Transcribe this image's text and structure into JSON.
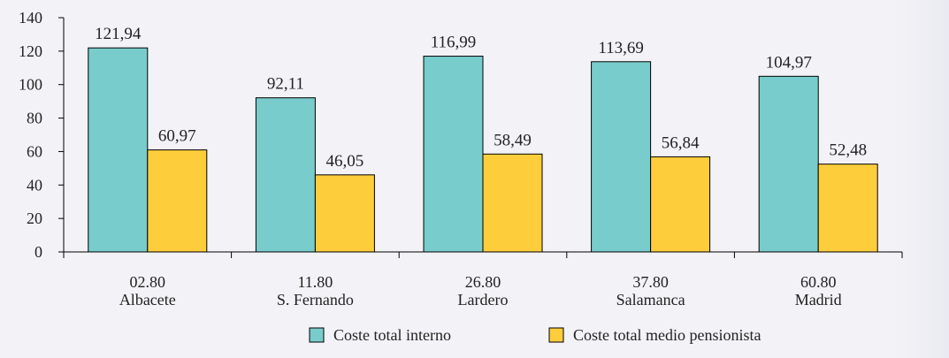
{
  "chart_data": {
    "type": "bar",
    "categories": [
      [
        "02.80",
        "Albacete"
      ],
      [
        "11.80",
        "S. Fernando"
      ],
      [
        "26.80",
        "Lardero"
      ],
      [
        "37.80",
        "Salamanca"
      ],
      [
        "60.80",
        "Madrid"
      ]
    ],
    "series": [
      {
        "name": "Coste total interno",
        "color": "#79cccc",
        "values": [
          121.94,
          92.11,
          116.99,
          113.69,
          104.97
        ],
        "labels": [
          "121,94",
          "92,11",
          "116,99",
          "113,69",
          "104,97"
        ]
      },
      {
        "name": "Coste total medio pensionista",
        "color": "#fdcd3c",
        "values": [
          60.97,
          46.05,
          58.49,
          56.84,
          52.48
        ],
        "labels": [
          "60,97",
          "46,05",
          "58,49",
          "56,84",
          "52,48"
        ]
      }
    ],
    "ylim": [
      0,
      140
    ],
    "yticks": [
      0,
      20,
      40,
      60,
      80,
      100,
      120,
      140
    ],
    "legend_position": "bottom",
    "grid": false
  }
}
